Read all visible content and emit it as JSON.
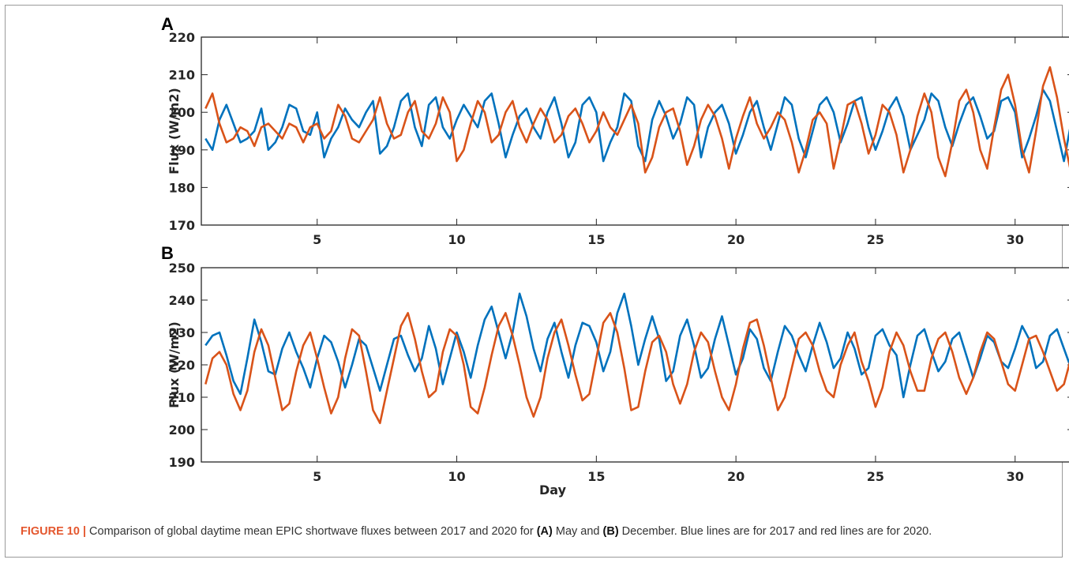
{
  "figure": {
    "caption_label": "FIGURE 10 |",
    "caption_parts": [
      {
        "text": " Comparison of global daytime mean EPIC shortwave fluxes between 2017 and 2020 for ",
        "bold": false
      },
      {
        "text": "(A)",
        "bold": true
      },
      {
        "text": " May and ",
        "bold": false
      },
      {
        "text": "(B)",
        "bold": true
      },
      {
        "text": " December. Blue lines are for 2017 and red lines are for 2020.",
        "bold": false
      }
    ],
    "colors": {
      "series_2017": "#0072BD",
      "series_2020": "#D95319",
      "axis": "#262626",
      "caption_label": "#e4572e"
    }
  },
  "chart_data": [
    {
      "type": "line",
      "panel_label": "A",
      "title": "",
      "xlabel": "",
      "ylabel": "Flux (W/m2)",
      "xlim": [
        0.85,
        32.1
      ],
      "ylim": [
        170,
        220
      ],
      "xticks": [
        5,
        10,
        15,
        20,
        25,
        30
      ],
      "yticks": [
        170,
        180,
        190,
        200,
        210,
        220
      ],
      "grid": false,
      "legend": "none",
      "series": [
        {
          "color": "#0072BD",
          "x_start": 1,
          "x_step": 0.25,
          "values": [
            193,
            190,
            198,
            202,
            197,
            192,
            193,
            195,
            201,
            190,
            192,
            196,
            202,
            201,
            195,
            194,
            200,
            188,
            193,
            196,
            201,
            198,
            196,
            200,
            203,
            189,
            191,
            196,
            203,
            205,
            196,
            191,
            202,
            204,
            196,
            193,
            198,
            202,
            199,
            196,
            203,
            205,
            197,
            188,
            194,
            199,
            201,
            196,
            193,
            200,
            204,
            197,
            188,
            192,
            202,
            204,
            200,
            187,
            192,
            196,
            205,
            203,
            191,
            187,
            198,
            203,
            199,
            193,
            197,
            204,
            202,
            188,
            196,
            200,
            202,
            197,
            189,
            194,
            200,
            203,
            196,
            190,
            197,
            204,
            202,
            193,
            188,
            195,
            202,
            204,
            200,
            192,
            197,
            203,
            204,
            196,
            190,
            195,
            201,
            204,
            199,
            190,
            194,
            198,
            205,
            203,
            196,
            191,
            197,
            202,
            204,
            199,
            193,
            195,
            203,
            204,
            200,
            188,
            193,
            199,
            206,
            203,
            195,
            187,
            197,
            201,
            209,
            200,
            193,
            196,
            205,
            210,
            204,
            191,
            196,
            203,
            210,
            205,
            198,
            193,
            199,
            206,
            207,
            198,
            195,
            200,
            204,
            206,
            200,
            196,
            199,
            206,
            205,
            198,
            196,
            200,
            206,
            204,
            198,
            196,
            200,
            207,
            205,
            200,
            197,
            201,
            206,
            203,
            199,
            195,
            198,
            204,
            206,
            201,
            197,
            199,
            205,
            204,
            200,
            196,
            198,
            203,
            202,
            198,
            194,
            198,
            203,
            204,
            199,
            195,
            197,
            202,
            204,
            197,
            190,
            193,
            200,
            203,
            198,
            192,
            194,
            201,
            204,
            196,
            187,
            191,
            200,
            202,
            196,
            190,
            193,
            201,
            203,
            196,
            186,
            191,
            200,
            203,
            200,
            190,
            197,
            204,
            205,
            199,
            195,
            202,
            209,
            207,
            200,
            196,
            202,
            206,
            207,
            203,
            198,
            204,
            207,
            205,
            199,
            195,
            196
          ]
        },
        {
          "color": "#D95319",
          "x_start": 1,
          "x_step": 0.25,
          "values": [
            201,
            205,
            197,
            192,
            193,
            196,
            195,
            191,
            196,
            197,
            195,
            193,
            197,
            196,
            192,
            196,
            197,
            193,
            195,
            202,
            199,
            193,
            192,
            195,
            198,
            204,
            197,
            193,
            194,
            200,
            203,
            195,
            193,
            197,
            204,
            200,
            187,
            190,
            197,
            203,
            200,
            192,
            194,
            200,
            203,
            196,
            192,
            197,
            201,
            198,
            192,
            194,
            199,
            201,
            197,
            192,
            195,
            200,
            196,
            194,
            198,
            202,
            197,
            184,
            188,
            196,
            200,
            201,
            195,
            186,
            191,
            198,
            202,
            199,
            193,
            185,
            193,
            199,
            204,
            197,
            193,
            196,
            200,
            198,
            192,
            184,
            190,
            198,
            200,
            197,
            185,
            193,
            202,
            203,
            197,
            189,
            194,
            202,
            200,
            194,
            184,
            190,
            199,
            205,
            200,
            188,
            183,
            192,
            203,
            206,
            200,
            190,
            185,
            196,
            206,
            210,
            202,
            190,
            184,
            195,
            207,
            212,
            204,
            193,
            184,
            194,
            203,
            209,
            200,
            190,
            190,
            200,
            210,
            205,
            196,
            198,
            212,
            216,
            207,
            199,
            204,
            212,
            213,
            205,
            197,
            201,
            208,
            209,
            202,
            196,
            199,
            202,
            205,
            201,
            197,
            198,
            203,
            203,
            199,
            196,
            200,
            203,
            196,
            191,
            194,
            196,
            196,
            193,
            195,
            198,
            196,
            192,
            195,
            198,
            193,
            190,
            196,
            200,
            196,
            189,
            186,
            197,
            201,
            195,
            187,
            193,
            200,
            204,
            194,
            183,
            185,
            195,
            200,
            193,
            178,
            181,
            190,
            198,
            194,
            186,
            183,
            196,
            200,
            190,
            176,
            183,
            196,
            199,
            188,
            180,
            184,
            189,
            192,
            194,
            193,
            182,
            184,
            188,
            191,
            194,
            193,
            190,
            183,
            186,
            195,
            196,
            188,
            191,
            187,
            187,
            187,
            187,
            187,
            187,
            187,
            187,
            187,
            187,
            187,
            187,
            183
          ]
        }
      ]
    },
    {
      "type": "line",
      "panel_label": "B",
      "title": "",
      "xlabel": "Day",
      "ylabel": "Flux (W/m2)",
      "xlim": [
        0.85,
        32.1
      ],
      "ylim": [
        190,
        250
      ],
      "xticks": [
        5,
        10,
        15,
        20,
        25,
        30
      ],
      "yticks": [
        190,
        200,
        210,
        220,
        230,
        240,
        250
      ],
      "grid": false,
      "legend": "none",
      "series": [
        {
          "color": "#0072BD",
          "x_start": 1,
          "x_step": 0.25,
          "values": [
            226,
            229,
            230,
            223,
            215,
            211,
            222,
            234,
            227,
            218,
            217,
            225,
            230,
            224,
            219,
            213,
            222,
            229,
            227,
            221,
            213,
            220,
            228,
            226,
            219,
            212,
            220,
            228,
            229,
            223,
            218,
            222,
            232,
            225,
            214,
            222,
            230,
            224,
            216,
            226,
            234,
            238,
            230,
            222,
            230,
            242,
            235,
            225,
            218,
            228,
            233,
            224,
            216,
            226,
            233,
            232,
            227,
            218,
            224,
            236,
            242,
            232,
            220,
            228,
            235,
            228,
            215,
            218,
            229,
            234,
            226,
            216,
            219,
            228,
            235,
            226,
            217,
            222,
            231,
            228,
            219,
            215,
            224,
            232,
            229,
            223,
            218,
            226,
            233,
            227,
            219,
            222,
            230,
            225,
            217,
            219,
            229,
            231,
            226,
            223,
            210,
            220,
            229,
            231,
            224,
            218,
            221,
            228,
            230,
            223,
            216,
            222,
            229,
            227,
            221,
            219,
            225,
            232,
            228,
            219,
            221,
            229,
            231,
            225,
            219,
            222,
            227,
            231,
            225,
            220,
            222,
            229,
            228,
            222,
            218,
            221,
            228,
            229,
            224,
            219,
            222,
            228,
            226,
            220,
            215,
            224,
            229,
            227,
            221,
            215,
            221,
            229,
            223,
            217,
            221,
            226,
            225,
            219,
            214,
            221,
            228,
            226,
            220,
            217,
            224,
            226,
            220,
            213,
            218,
            227,
            225,
            219,
            212,
            220,
            228,
            227,
            222,
            214,
            220,
            226,
            223,
            218,
            222,
            228,
            230,
            225,
            214,
            222,
            229,
            225,
            217,
            209,
            218,
            225,
            229,
            228,
            222,
            220,
            227,
            230,
            224,
            214,
            218,
            228,
            231,
            224,
            212,
            220,
            231,
            234,
            229,
            218,
            212,
            218,
            228,
            233,
            229,
            219,
            211,
            219,
            226,
            231,
            226,
            218,
            212,
            208,
            218,
            226,
            230,
            232,
            229,
            222,
            214,
            204
          ]
        },
        {
          "color": "#D95319",
          "x_start": 1,
          "x_step": 0.25,
          "values": [
            214,
            222,
            224,
            220,
            211,
            206,
            212,
            224,
            231,
            226,
            216,
            206,
            208,
            218,
            226,
            230,
            222,
            213,
            205,
            210,
            222,
            231,
            229,
            218,
            206,
            202,
            212,
            222,
            232,
            236,
            228,
            218,
            210,
            212,
            224,
            231,
            229,
            220,
            207,
            205,
            213,
            223,
            232,
            236,
            229,
            220,
            210,
            204,
            210,
            222,
            230,
            234,
            226,
            217,
            209,
            211,
            222,
            233,
            236,
            230,
            219,
            206,
            207,
            218,
            227,
            229,
            224,
            214,
            208,
            214,
            224,
            230,
            227,
            218,
            210,
            206,
            214,
            225,
            233,
            234,
            226,
            216,
            206,
            210,
            219,
            228,
            230,
            226,
            218,
            212,
            210,
            220,
            226,
            230,
            221,
            215,
            207,
            213,
            224,
            230,
            226,
            218,
            212,
            212,
            222,
            228,
            230,
            224,
            216,
            211,
            216,
            224,
            230,
            228,
            221,
            214,
            212,
            220,
            228,
            229,
            224,
            218,
            212,
            214,
            222,
            226,
            228,
            224,
            218,
            214,
            214,
            220,
            226,
            227,
            222,
            217,
            214,
            219,
            225,
            228,
            224,
            218,
            214,
            216,
            224,
            228,
            227,
            221,
            215,
            214,
            218,
            224,
            227,
            224,
            219,
            213,
            216,
            223,
            227,
            224,
            218,
            212,
            214,
            221,
            226,
            223,
            217,
            211,
            214,
            221,
            226,
            222,
            215,
            210,
            213,
            220,
            225,
            222,
            215,
            208,
            210,
            218,
            224,
            222,
            215,
            206,
            210,
            219,
            225,
            221,
            212,
            201,
            207,
            218,
            227,
            224,
            214,
            203,
            204,
            215,
            224,
            226,
            217,
            206,
            200,
            202,
            204,
            206,
            208,
            210,
            212,
            214,
            216,
            218,
            220,
            220,
            219,
            218,
            216,
            212,
            210,
            208,
            206,
            212,
            220,
            225,
            222,
            214,
            202,
            212,
            226,
            228,
            224,
            220,
            213,
            206,
            215,
            220,
            205
          ]
        }
      ]
    }
  ]
}
